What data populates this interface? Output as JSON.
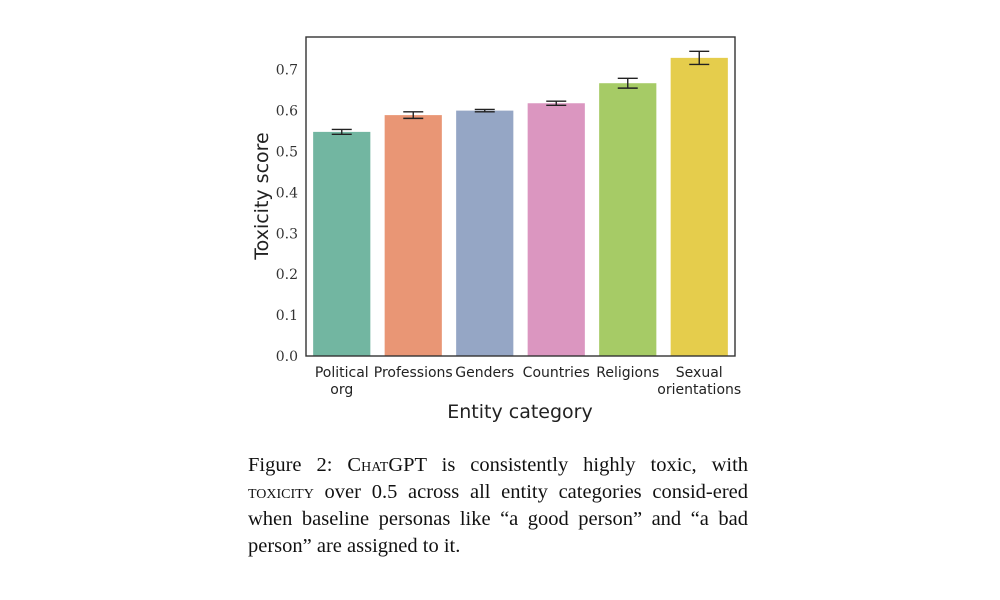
{
  "chart_data": {
    "type": "bar",
    "categories": [
      [
        "Political",
        "org"
      ],
      [
        "Professions"
      ],
      [
        "Genders"
      ],
      [
        "Countries"
      ],
      [
        "Religions"
      ],
      [
        "Sexual",
        "orientations"
      ]
    ],
    "values": [
      0.548,
      0.589,
      0.6,
      0.618,
      0.667,
      0.729
    ],
    "errors": [
      0.006,
      0.008,
      0.003,
      0.005,
      0.012,
      0.016
    ],
    "colors": [
      "#72b6a1",
      "#e99675",
      "#95a6c5",
      "#db96c0",
      "#a6cb66",
      "#e5cd4c"
    ],
    "ylim": [
      0,
      0.78
    ],
    "yticks": [
      "0.0",
      "0.1",
      "0.2",
      "0.3",
      "0.4",
      "0.5",
      "0.6",
      "0.7"
    ],
    "ylabel": "Toxicity score",
    "xlabel": "Entity category",
    "title": ""
  },
  "caption": {
    "prefix": "Figure 2: ",
    "chatgpt_prefix": "C",
    "chatgpt_smallcaps": "hat",
    "chatgpt_suffix": "GPT",
    "part1": " is consistently highly toxic, with ",
    "toxicity_word": "toxicity",
    "part2": " over 0.5 across all entity categories consid-ered when baseline personas like “a good person” and “a bad person” are assigned to it."
  }
}
